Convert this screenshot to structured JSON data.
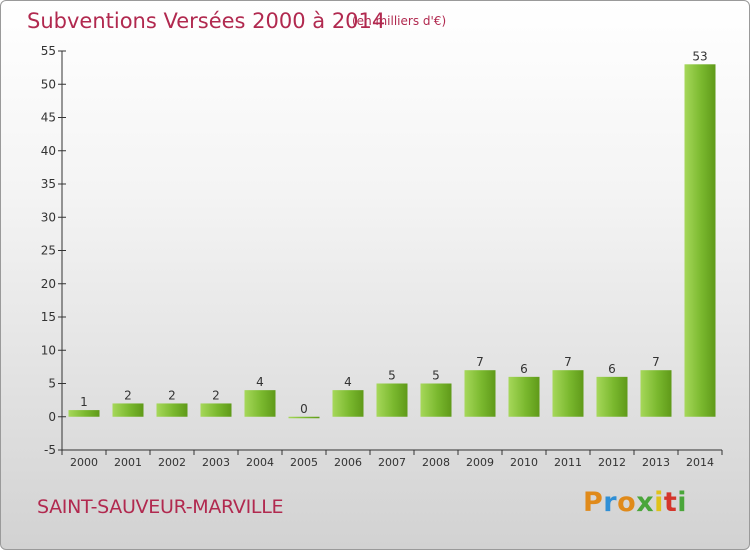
{
  "chart_data": {
    "type": "bar",
    "title": "Subventions Versées 2000 à 2014",
    "subtitle": "(en milliers d'€)",
    "categories": [
      "2000",
      "2001",
      "2002",
      "2003",
      "2004",
      "2005",
      "2006",
      "2007",
      "2008",
      "2009",
      "2010",
      "2011",
      "2012",
      "2013",
      "2014"
    ],
    "values": [
      1,
      2,
      2,
      2,
      4,
      0,
      4,
      5,
      5,
      7,
      6,
      7,
      6,
      7,
      53
    ],
    "ylim": [
      -5,
      55
    ],
    "yticks": [
      -5,
      0,
      5,
      10,
      15,
      20,
      25,
      30,
      35,
      40,
      45,
      50,
      55
    ],
    "grid": false,
    "bar_color": "#7ab82e",
    "bar_color_dark": "#5f9a19"
  },
  "footer": {
    "town": "SAINT-SAUVEUR-MARVILLE"
  },
  "logo": {
    "letters": [
      "P",
      "r",
      "o",
      "x",
      "i",
      "t",
      "i"
    ],
    "colors": [
      "#e08a1a",
      "#2f8fd6",
      "#e08a1a",
      "#4aa63a",
      "#e0c21a",
      "#d4352b",
      "#4aa63a"
    ]
  },
  "colors": {
    "title": "#b1294f",
    "axis": "#333333",
    "label": "#333333"
  }
}
